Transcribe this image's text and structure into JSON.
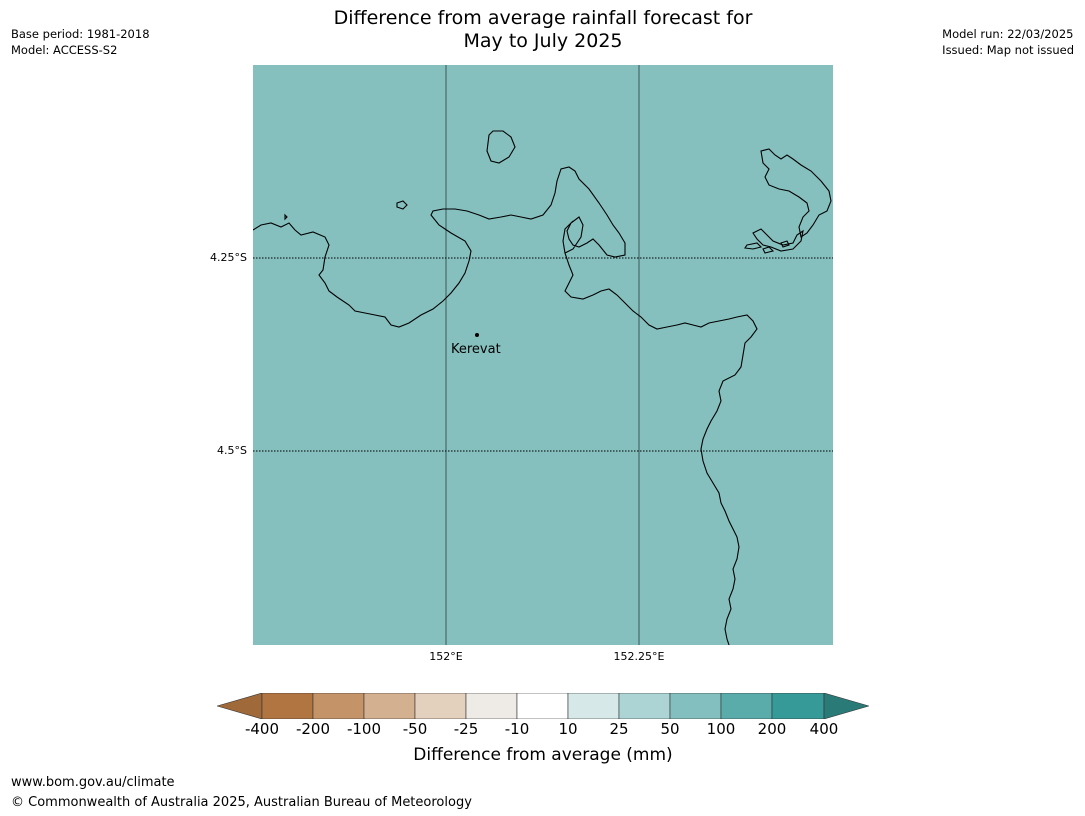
{
  "title_line1": "Difference from average rainfall forecast for",
  "title_line2": "May to July 2025",
  "meta_left": {
    "base_period": "Base period: 1981-2018",
    "model": "Model: ACCESS-S2"
  },
  "meta_right": {
    "model_run": "Model run: 22/03/2025",
    "issued": "Issued: Map not issued"
  },
  "map": {
    "fill_color": "#85c0bf",
    "lat_labels": [
      "4.25°S",
      "4.5°S"
    ],
    "lon_labels": [
      "152°E",
      "152.25°E"
    ],
    "place": {
      "name": "Kerevat"
    }
  },
  "colorbar": {
    "label": "Difference from average (mm)",
    "ticks": [
      "-400",
      "-200",
      "-100",
      "-50",
      "-25",
      "-10",
      "10",
      "25",
      "50",
      "100",
      "200",
      "400"
    ],
    "colors": [
      "#a0693a",
      "#b07540",
      "#c49468",
      "#d2b090",
      "#e3d0bd",
      "#eeeae6",
      "#ffffff",
      "#d6e8e8",
      "#acd4d4",
      "#83bfbe",
      "#5aacab",
      "#359a98",
      "#2a7a78"
    ]
  },
  "footer": {
    "url": "www.bom.gov.au/climate",
    "copyright": "© Commonwealth of Australia 2025, Australian Bureau of Meteorology"
  }
}
